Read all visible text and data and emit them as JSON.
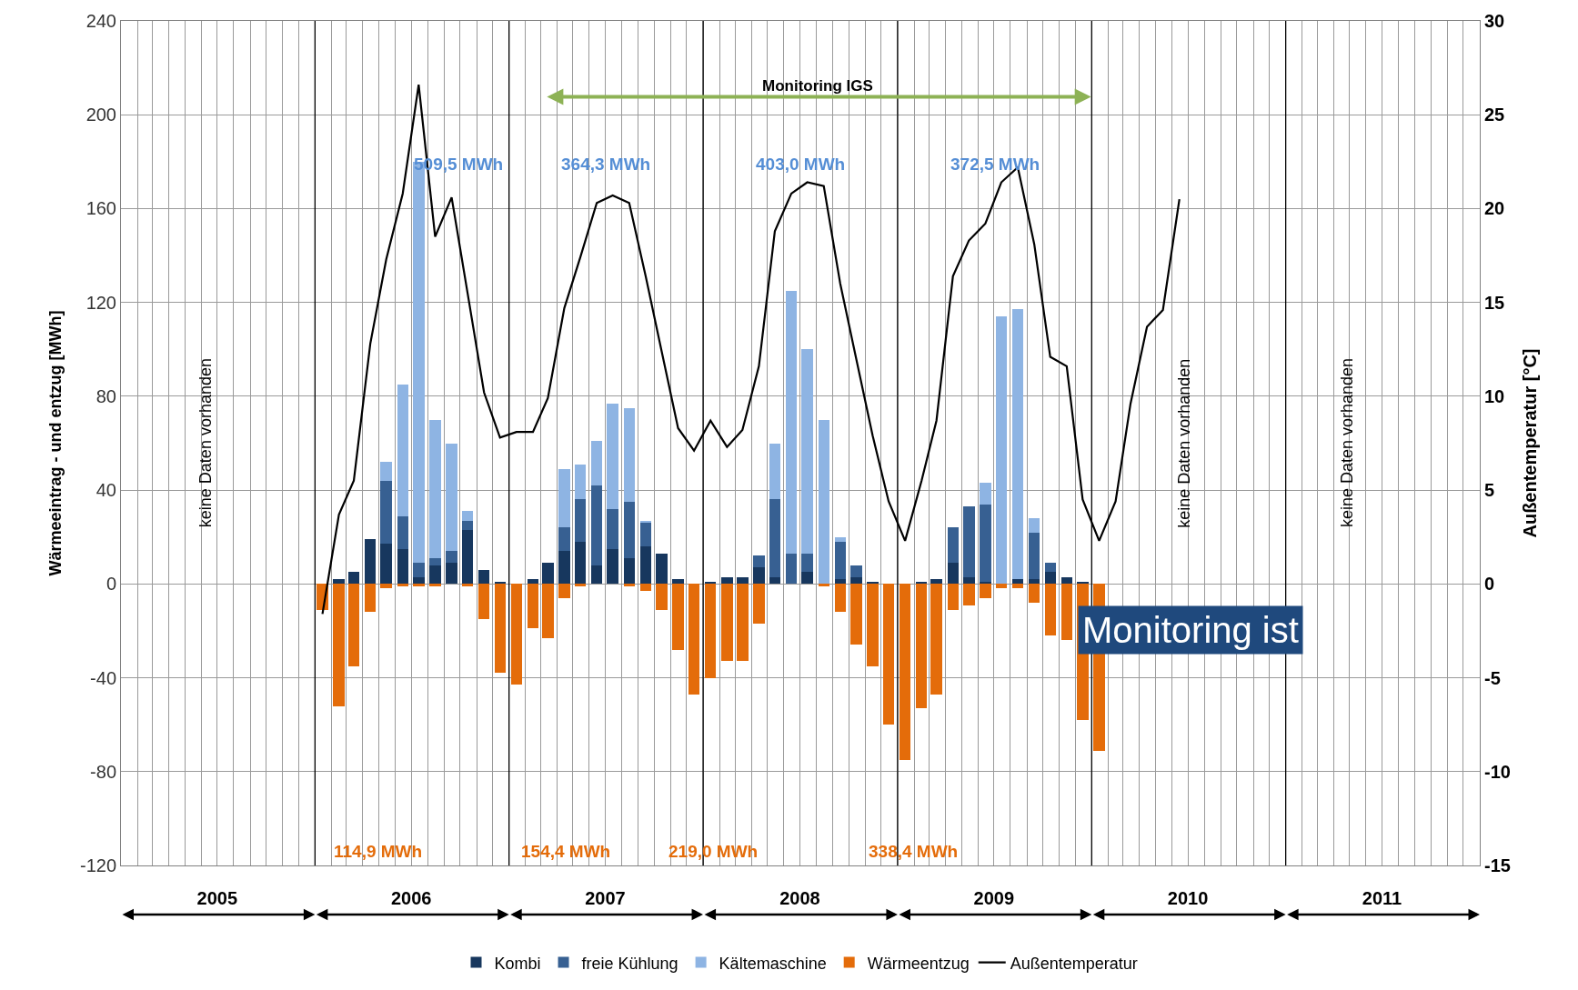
{
  "chart_data": {
    "type": "bar",
    "stacked": true,
    "x": [
      "2006-01-15",
      "2006-02-15",
      "2006-03-15",
      "2006-04-15",
      "2006-05-15",
      "2006-06-15",
      "2006-07-15",
      "2006-08-15",
      "2006-09-15",
      "2006-10-15",
      "2006-11-15",
      "2006-12-15",
      "2007-01-15",
      "2007-02-15",
      "2007-03-15",
      "2007-04-15",
      "2007-05-15",
      "2007-06-15",
      "2007-07-15",
      "2007-08-15",
      "2007-09-15",
      "2007-10-15",
      "2007-11-15",
      "2007-12-15",
      "2008-01-15",
      "2008-02-15",
      "2008-03-15",
      "2008-04-15",
      "2008-05-15",
      "2008-06-15",
      "2008-07-15",
      "2008-08-15",
      "2008-09-15",
      "2008-10-15",
      "2008-11-15",
      "2008-12-15",
      "2009-01-15",
      "2009-02-15",
      "2009-03-15",
      "2009-04-15",
      "2009-05-15",
      "2009-06-15",
      "2009-07-15",
      "2009-08-15",
      "2009-09-15",
      "2009-10-15",
      "2009-11-15",
      "2009-12-15",
      "2010-01-15"
    ],
    "series": [
      {
        "name": "Kombi",
        "color": "#17375e",
        "values": [
          0,
          2,
          5,
          19,
          17,
          15,
          3,
          8,
          9,
          23,
          6,
          1,
          0,
          2,
          9,
          14,
          18,
          8,
          15,
          11,
          16,
          13,
          2,
          0,
          1,
          3,
          3,
          7,
          3,
          0,
          5,
          0,
          2,
          3,
          1,
          0,
          0,
          1,
          2,
          9,
          3,
          1,
          0,
          2,
          2,
          5,
          3,
          1,
          0
        ]
      },
      {
        "name": "freie Kühlung",
        "color": "#376092",
        "values": [
          0,
          0,
          0,
          0,
          27,
          14,
          6,
          3,
          5,
          4,
          0,
          0,
          0,
          0,
          0,
          10,
          18,
          34,
          17,
          24,
          10,
          0,
          0,
          0,
          0,
          0,
          0,
          5,
          33,
          13,
          8,
          0,
          16,
          5,
          0,
          0,
          0,
          0,
          0,
          15,
          30,
          33,
          0,
          0,
          20,
          4,
          0,
          0,
          0
        ]
      },
      {
        "name": "Kältemaschine",
        "color": "#8eb4e3",
        "values": [
          0,
          0,
          0,
          0,
          8,
          56,
          171,
          59,
          46,
          4,
          0,
          0,
          0,
          0,
          0,
          25,
          15,
          19,
          45,
          40,
          1,
          0,
          0,
          0,
          0,
          0,
          0,
          0,
          24,
          112,
          87,
          70,
          2,
          0,
          0,
          0,
          0,
          0,
          0,
          0,
          0,
          9,
          114,
          115,
          6,
          0,
          0,
          0,
          0
        ]
      },
      {
        "name": "Wärmeentzug",
        "color": "#e46c0a",
        "values": [
          -11,
          -52,
          -35,
          -12,
          -2,
          -1,
          -1,
          -1,
          0,
          -1,
          -15,
          -38,
          -43,
          -19,
          -23,
          -6,
          -1,
          0,
          0,
          -1,
          -3,
          -11,
          -28,
          -47,
          -40,
          -33,
          -33,
          -17,
          0,
          0,
          0,
          -1,
          -12,
          -26,
          -35,
          -60,
          -75,
          -53,
          -47,
          -11,
          -9,
          -6,
          -2,
          -2,
          -8,
          -22,
          -24,
          -58,
          -71
        ]
      },
      {
        "name": "Außentemperatur",
        "type": "line",
        "axis": "y2",
        "color": "#000000",
        "x": [
          "2006-01-15",
          "2006-02-15",
          "2006-03-15",
          "2006-04-15",
          "2006-05-15",
          "2006-06-15",
          "2006-07-15",
          "2006-08-15",
          "2006-09-15",
          "2006-10-15",
          "2006-11-15",
          "2006-12-15",
          "2007-01-15",
          "2007-02-15",
          "2007-03-15",
          "2007-04-15",
          "2007-05-15",
          "2007-06-15",
          "2007-07-15",
          "2007-08-15",
          "2007-09-15",
          "2007-10-15",
          "2007-11-15",
          "2007-12-15",
          "2008-01-15",
          "2008-02-15",
          "2008-03-15",
          "2008-04-15",
          "2008-05-15",
          "2008-06-15",
          "2008-07-15",
          "2008-08-15",
          "2008-09-15",
          "2008-10-15",
          "2008-11-15",
          "2008-12-15",
          "2009-01-15",
          "2009-02-15",
          "2009-03-15",
          "2009-04-15",
          "2009-05-15",
          "2009-06-15",
          "2009-07-15",
          "2009-08-15",
          "2009-09-15",
          "2009-10-15",
          "2009-11-15",
          "2009-12-15",
          "2010-01-15",
          "2010-02-15",
          "2010-03-15",
          "2010-04-15",
          "2010-05-15",
          "2010-06-15"
        ],
        "values": [
          -1.6,
          3.7,
          5.5,
          12.8,
          17.3,
          20.8,
          26.6,
          18.5,
          20.6,
          15.5,
          10.2,
          7.8,
          8.1,
          8.1,
          9.9,
          14.7,
          17.4,
          20.3,
          20.7,
          20.3,
          16.4,
          12.4,
          8.3,
          7.1,
          8.7,
          7.3,
          8.2,
          11.6,
          18.8,
          20.8,
          21.4,
          21.2,
          16.0,
          12.0,
          7.9,
          4.4,
          2.3,
          5.5,
          8.7,
          16.4,
          18.3,
          19.2,
          21.4,
          22.2,
          18.1,
          12.1,
          11.6,
          4.5,
          2.3,
          4.4,
          9.6,
          13.7,
          14.6,
          20.5
        ]
      }
    ],
    "ylabel": "Wärmeeintrag - und entzug [MWh]",
    "y2label": "Außentemperatur [°C]",
    "xlim": [
      "2005-01-01",
      "2012-01-01"
    ],
    "xticks": [
      {
        "value": "2005-07-01",
        "label": "2005"
      },
      {
        "value": "2006-07-01",
        "label": "2006"
      },
      {
        "value": "2007-07-01",
        "label": "2007"
      },
      {
        "value": "2008-07-01",
        "label": "2008"
      },
      {
        "value": "2009-07-01",
        "label": "2009"
      },
      {
        "value": "2010-07-01",
        "label": "2010"
      },
      {
        "value": "2011-07-01",
        "label": "2011"
      }
    ],
    "ylim": [
      -120,
      240
    ],
    "yticks": [
      -120,
      -80,
      -40,
      0,
      40,
      80,
      120,
      160,
      200,
      240
    ],
    "y2lim": [
      -15,
      30
    ],
    "y2ticks": [
      -15,
      -10,
      -5,
      0,
      5,
      10,
      15,
      20,
      25,
      30
    ],
    "ref_lines": [
      {
        "axis": "x",
        "value": "2006-01-01",
        "color": "#000000"
      },
      {
        "axis": "x",
        "value": "2007-01-01",
        "color": "#000000"
      },
      {
        "axis": "x",
        "value": "2008-01-01",
        "color": "#000000"
      },
      {
        "axis": "x",
        "value": "2009-01-01",
        "color": "#000000"
      },
      {
        "axis": "x",
        "value": "2010-01-01",
        "color": "#000000"
      },
      {
        "axis": "x",
        "value": "2011-01-01",
        "color": "#000000"
      }
    ],
    "annotations": [
      "509,5 MWh",
      "364,3 MWh",
      "403,0 MWh",
      "372,5 MWh",
      "114,9 MWh",
      "154,4 MWh",
      "219,0 MWh",
      "338,4 MWh",
      "Monitoring IGS",
      "keine Daten vorhanden",
      "keine Daten vorhanden",
      "keine Daten vorhanden",
      "Monitoring ist"
    ],
    "grid": true,
    "legend": "bottom",
    "line_style": "solid",
    "marker": "none"
  }
}
